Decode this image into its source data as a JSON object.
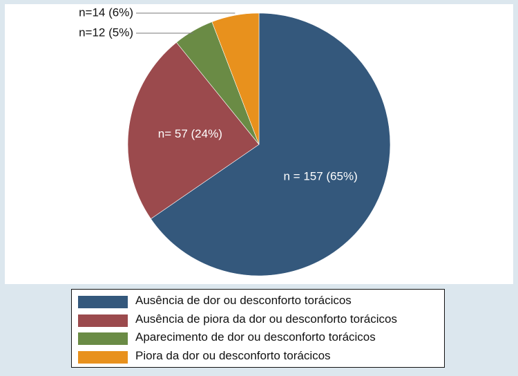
{
  "chart_data": {
    "type": "pie",
    "title": "",
    "slices": [
      {
        "name": "Ausência de dor ou desconforto torácicos",
        "value": 157,
        "percent": 65,
        "label": "n = 157 (65%)",
        "color": "#34587c",
        "label_color": "#ffffff"
      },
      {
        "name": "Ausência de piora da dor ou desconforto torácicos",
        "value": 57,
        "percent": 24,
        "label": "n= 57 (24%)",
        "color": "#9b4a4d",
        "label_color": "#ffffff"
      },
      {
        "name": "Aparecimento de dor ou desconforto torácicos",
        "value": 12,
        "percent": 5,
        "label": "n=12 (5%)",
        "color": "#6a8b45",
        "label_color": "#111111"
      },
      {
        "name": "Piora da dor ou desconforto torácicos",
        "value": 14,
        "percent": 6,
        "label": "n=14 (6%)",
        "color": "#e8911d",
        "label_color": "#111111"
      }
    ],
    "legend_position": "bottom"
  }
}
